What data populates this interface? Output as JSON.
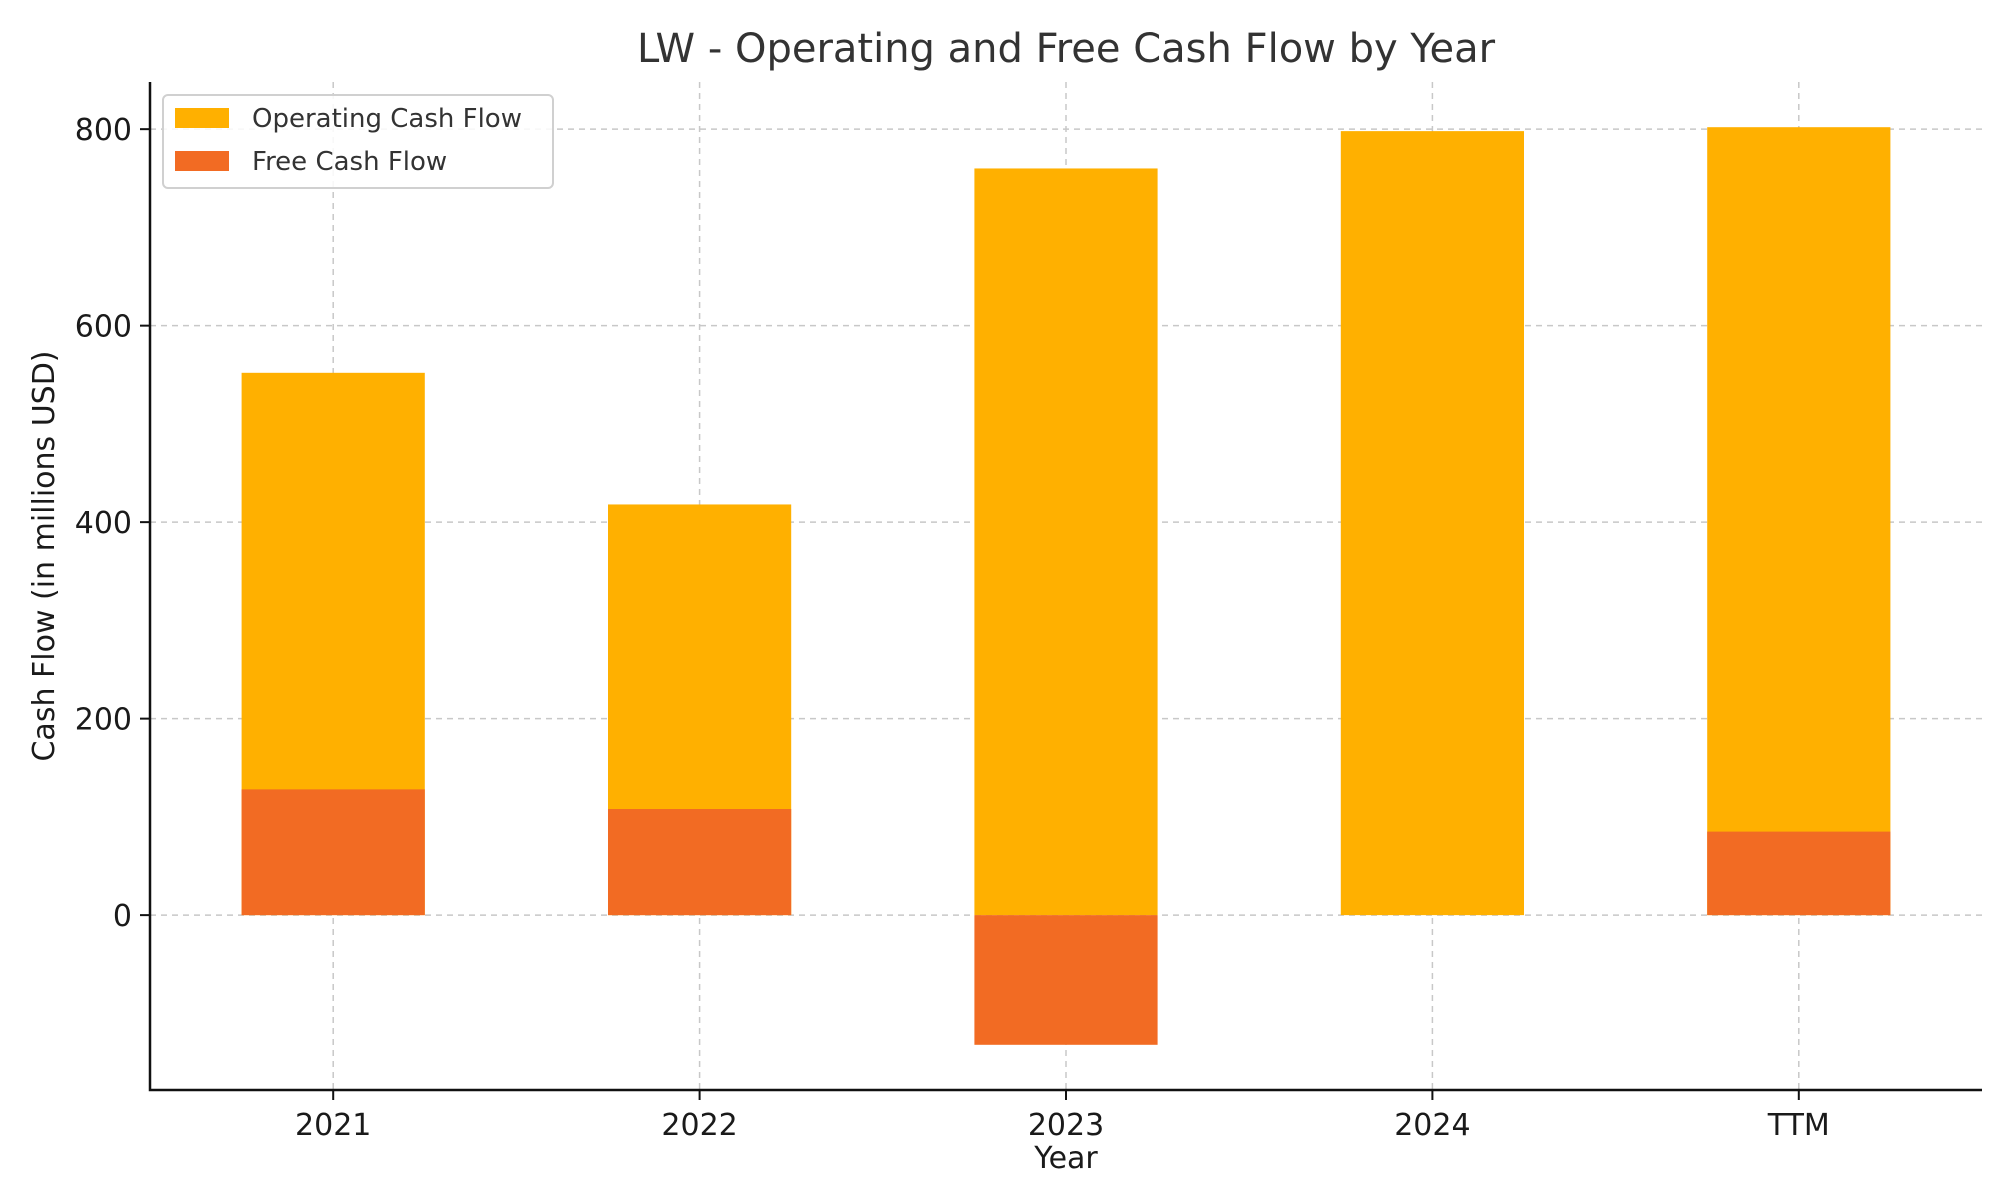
{
  "chart_data": {
    "type": "bar",
    "title": "LW - Operating and Free Cash Flow by Year",
    "xlabel": "Year",
    "ylabel": "Cash Flow (in millions USD)",
    "categories": [
      "2021",
      "2022",
      "2023",
      "2024",
      "TTM"
    ],
    "series": [
      {
        "name": "Operating Cash Flow",
        "color": "#FFB000",
        "values": [
          552,
          418,
          760,
          798,
          802
        ]
      },
      {
        "name": "Free Cash Flow",
        "color": "#F26B23",
        "values": [
          128,
          108,
          -132,
          0,
          85
        ]
      }
    ],
    "ylim": [
      -178,
      848
    ],
    "yticks": [
      0,
      200,
      400,
      600,
      800
    ],
    "grid": true,
    "legend": "top-left",
    "overlay": true
  }
}
